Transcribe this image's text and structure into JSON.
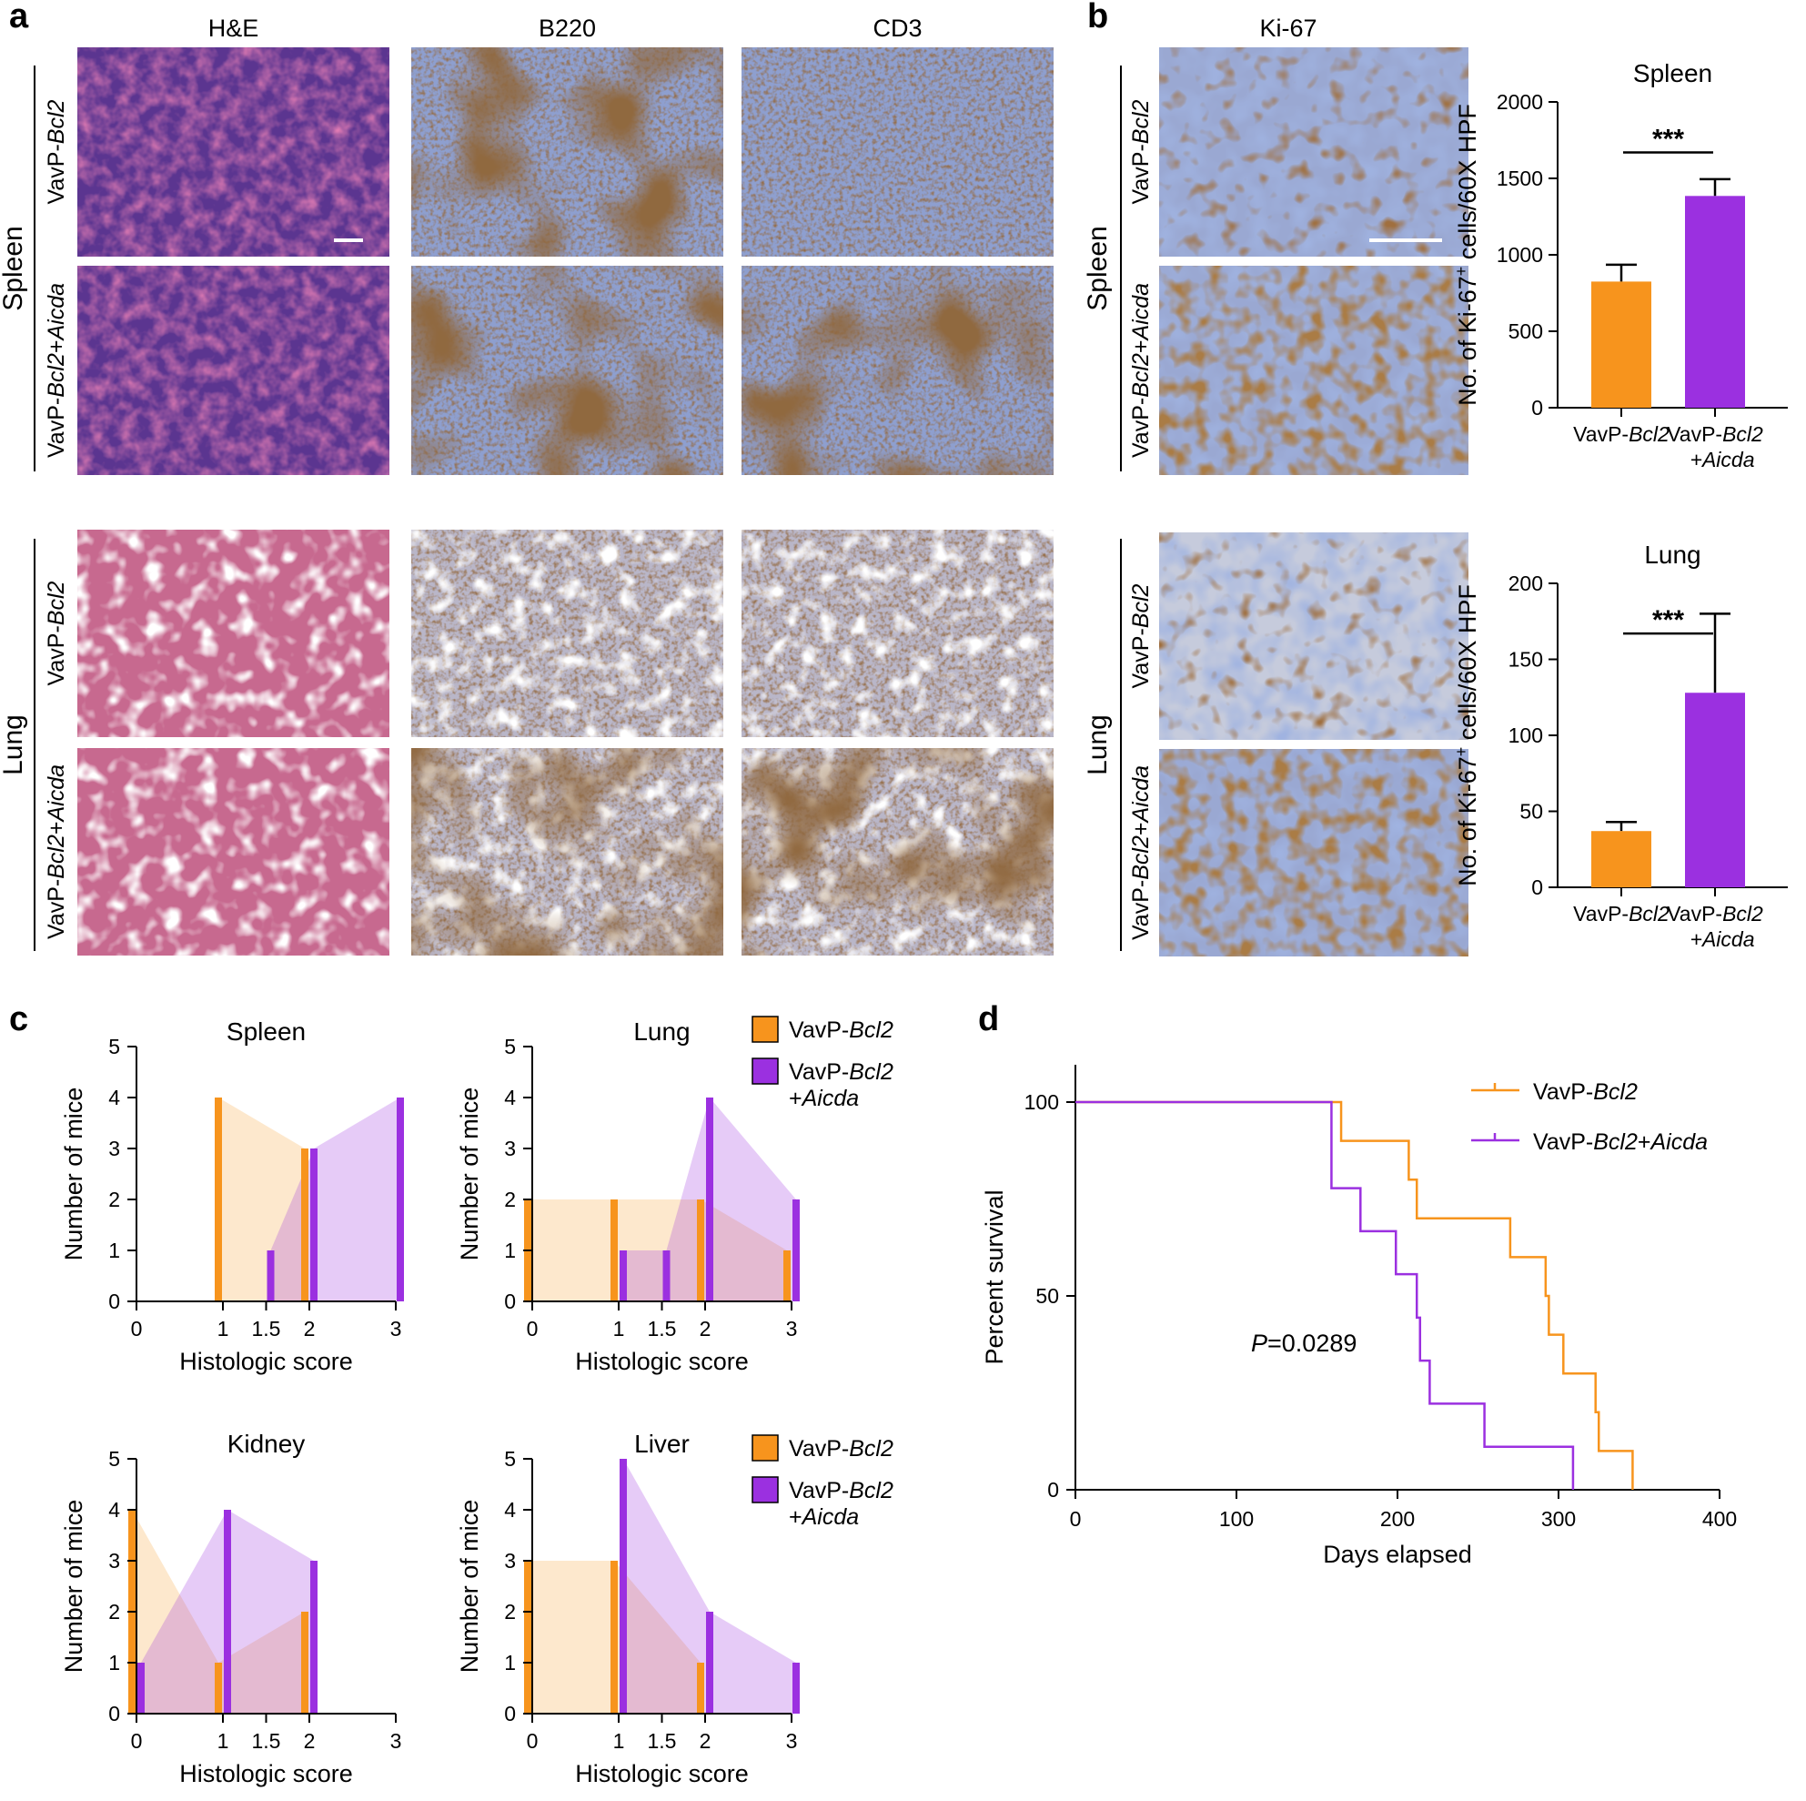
{
  "panel_letters": {
    "a": "a",
    "b": "b",
    "c": "c",
    "d": "d"
  },
  "colors": {
    "bcl2": "#f7941d",
    "aicda": "#9b30e0",
    "he_pink": "#c0306e",
    "he_purple": "#5b3590",
    "ihc_blue": "#8e9fcf",
    "ihc_brown": "#4a2510",
    "lung_bg": "#efe6ea"
  },
  "panel_a": {
    "columns": [
      "H&E",
      "B220",
      "CD3"
    ],
    "organs": [
      "Spleen",
      "Lung"
    ],
    "rows": [
      {
        "prefix": "VavP-",
        "gene": "Bcl2",
        "suffix": ""
      },
      {
        "prefix": "VavP-",
        "gene": "Bcl2",
        "suffix": "+",
        "gene2": "Aicda"
      }
    ]
  },
  "panel_b": {
    "column": "Ki-67",
    "organs": [
      "Spleen",
      "Lung"
    ],
    "rows": [
      {
        "prefix": "VavP-",
        "gene": "Bcl2"
      },
      {
        "prefix": "VavP-",
        "gene": "Bcl2",
        "plus": "+",
        "gene2": "Aicda"
      }
    ]
  },
  "chart_data": [
    {
      "id": "b-spleen",
      "type": "bar",
      "title": "Spleen",
      "ylabel": "No. of Ki-67+ cells/60X HPF",
      "ylabel_parts": [
        "No. of Ki-67",
        "+",
        " cells/60X HPF"
      ],
      "categories": [
        [
          "VavP-",
          "Bcl2",
          ""
        ],
        [
          "VavP-",
          "Bcl2",
          "+Aicda"
        ]
      ],
      "values": [
        825,
        1385
      ],
      "errors": [
        110,
        110
      ],
      "ylim": [
        0,
        2000
      ],
      "yticks": [
        0,
        500,
        1000,
        1500,
        2000
      ],
      "significance": "***"
    },
    {
      "id": "b-lung",
      "type": "bar",
      "title": "Lung",
      "ylabel": "No. of Ki-67+ cells/60X HPF",
      "ylabel_parts": [
        "No. of Ki-67",
        "+",
        " cells/60X HPF"
      ],
      "categories": [
        [
          "VavP-",
          "Bcl2",
          ""
        ],
        [
          "VavP-",
          "Bcl2",
          "+Aicda"
        ]
      ],
      "values": [
        37,
        128
      ],
      "errors": [
        6,
        52
      ],
      "ylim": [
        0,
        200
      ],
      "yticks": [
        0,
        50,
        100,
        150,
        200
      ],
      "significance": "***"
    },
    {
      "id": "c-spleen",
      "type": "bar",
      "title": "Spleen",
      "xlabel": "Histologic score",
      "ylabel": "Number of mice",
      "xticks": [
        "0",
        "1",
        "1.5",
        "2",
        "3"
      ],
      "ylim": [
        0,
        5
      ],
      "yticks": [
        0,
        1,
        2,
        3,
        4,
        5
      ],
      "series": [
        {
          "name": "VavP-Bcl2",
          "x": [
            "1",
            "2"
          ],
          "values": [
            4,
            3
          ]
        },
        {
          "name": "VavP-Bcl2+Aicda",
          "x": [
            "1.5",
            "2",
            "3"
          ],
          "values": [
            1,
            3,
            4
          ]
        }
      ]
    },
    {
      "id": "c-lung",
      "type": "bar",
      "title": "Lung",
      "xlabel": "Histologic score",
      "ylabel": "Number of mice",
      "xticks": [
        "0",
        "1",
        "1.5",
        "2",
        "3"
      ],
      "ylim": [
        0,
        5
      ],
      "yticks": [
        0,
        1,
        2,
        3,
        4,
        5
      ],
      "series": [
        {
          "name": "VavP-Bcl2",
          "x": [
            "0",
            "1",
            "2",
            "3"
          ],
          "values": [
            2,
            2,
            2,
            1
          ]
        },
        {
          "name": "VavP-Bcl2+Aicda",
          "x": [
            "1",
            "1.5",
            "2",
            "3"
          ],
          "values": [
            1,
            1,
            4,
            2
          ]
        }
      ]
    },
    {
      "id": "c-kidney",
      "type": "bar",
      "title": "Kidney",
      "xlabel": "Histologic score",
      "ylabel": "Number of mice",
      "xticks": [
        "0",
        "1",
        "1.5",
        "2",
        "3"
      ],
      "ylim": [
        0,
        5
      ],
      "yticks": [
        0,
        1,
        2,
        3,
        4,
        5
      ],
      "series": [
        {
          "name": "VavP-Bcl2",
          "x": [
            "0",
            "1",
            "2"
          ],
          "values": [
            4,
            1,
            2
          ]
        },
        {
          "name": "VavP-Bcl2+Aicda",
          "x": [
            "0",
            "1",
            "2"
          ],
          "values": [
            1,
            4,
            3
          ]
        }
      ]
    },
    {
      "id": "c-liver",
      "type": "bar",
      "title": "Liver",
      "xlabel": "Histologic score",
      "ylabel": "Number of mice",
      "xticks": [
        "0",
        "1",
        "1.5",
        "2",
        "3"
      ],
      "ylim": [
        0,
        5
      ],
      "yticks": [
        0,
        1,
        2,
        3,
        4,
        5
      ],
      "series": [
        {
          "name": "VavP-Bcl2",
          "x": [
            "0",
            "1",
            "2"
          ],
          "values": [
            3,
            3,
            1
          ]
        },
        {
          "name": "VavP-Bcl2+Aicda",
          "x": [
            "1",
            "2",
            "3"
          ],
          "values": [
            5,
            2,
            1
          ]
        }
      ]
    },
    {
      "id": "d-survival",
      "type": "line",
      "xlabel": "Days elapsed",
      "ylabel": "Percent survival",
      "xlim": [
        0,
        400
      ],
      "xticks": [
        0,
        100,
        200,
        300,
        400
      ],
      "ylim": [
        0,
        100
      ],
      "yticks": [
        0,
        50,
        100
      ],
      "annotation": {
        "italic": "P",
        "text": "=0.0289"
      },
      "series": [
        {
          "name": "VavP-Bcl2",
          "x": [
            0,
            165,
            165,
            207,
            207,
            212,
            212,
            270,
            270,
            292,
            292,
            294,
            294,
            303,
            303,
            323,
            323,
            325,
            325,
            346,
            346
          ],
          "y": [
            100,
            100,
            90,
            90,
            80,
            80,
            70,
            70,
            60,
            60,
            50,
            50,
            40,
            40,
            30,
            30,
            20,
            20,
            10,
            10,
            0
          ]
        },
        {
          "name": "VavP-Bcl2+Aicda",
          "x": [
            0,
            159,
            159,
            177,
            177,
            199,
            199,
            212,
            212,
            214,
            214,
            220,
            220,
            254,
            254,
            309,
            309
          ],
          "y": [
            100,
            100,
            77.8,
            77.8,
            66.7,
            66.7,
            55.6,
            55.6,
            44.4,
            44.4,
            33.3,
            33.3,
            22.2,
            22.2,
            11.1,
            11.1,
            0
          ]
        }
      ]
    }
  ],
  "legend_c": [
    {
      "lines": [
        [
          "VavP-",
          "Bcl2"
        ]
      ]
    },
    {
      "lines": [
        [
          "VavP-",
          "Bcl2"
        ],
        [
          "+",
          "Aicda"
        ]
      ]
    }
  ],
  "legend_d": [
    {
      "prefix": "VavP-",
      "gene": "Bcl2",
      "suffix": ""
    },
    {
      "prefix": "VavP-",
      "gene": "Bcl2",
      "suffix": "+",
      "gene2": "Aicda"
    }
  ]
}
